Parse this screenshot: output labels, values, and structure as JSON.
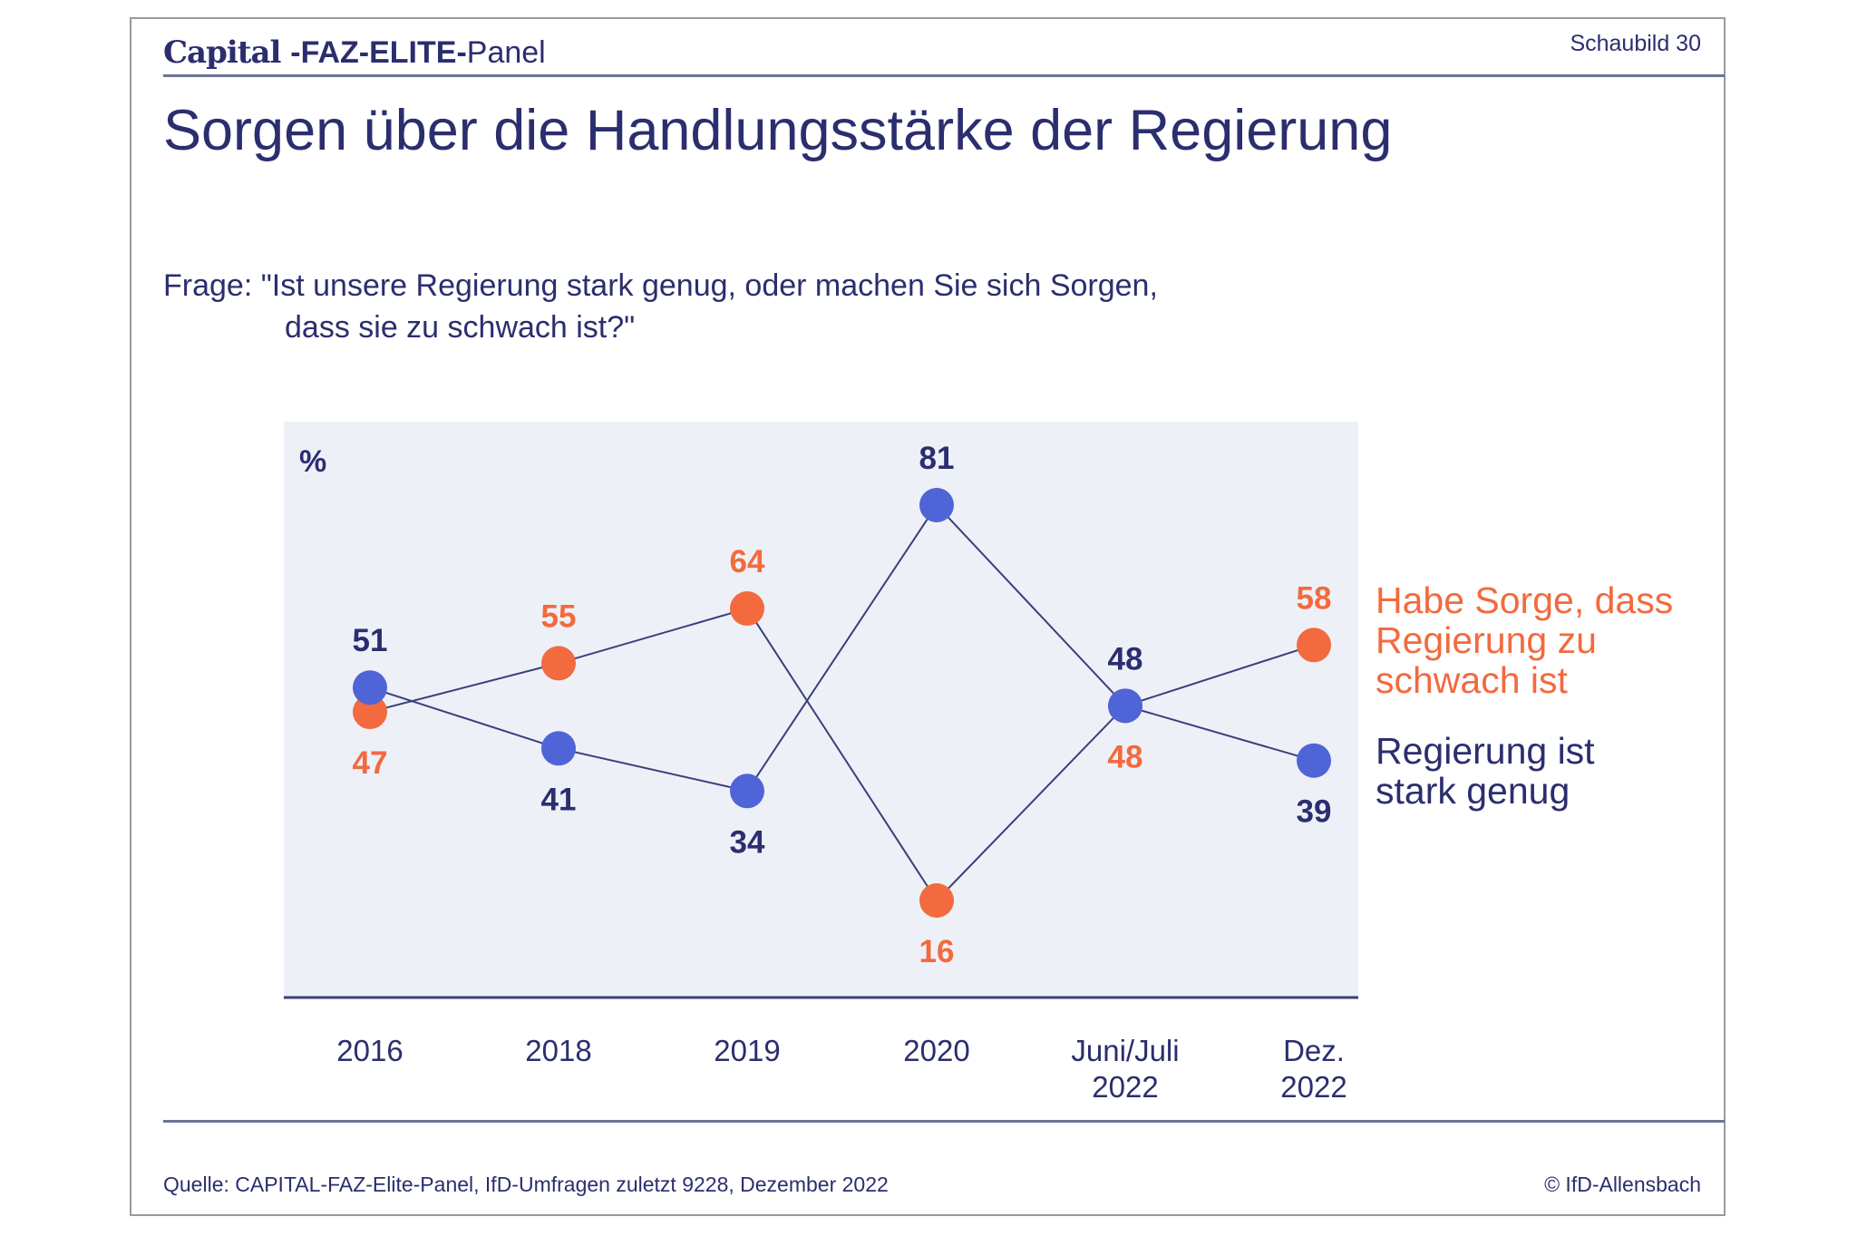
{
  "header": {
    "brand_capital": "Capital",
    "brand_faz": "-FAZ-ELITE-",
    "brand_panel": "Panel",
    "figure_number": "Schaubild 30"
  },
  "title": "Sorgen über die Handlungsstärke der Regierung",
  "question": {
    "line1": "Frage: \"Ist unsere Regierung stark genug, oder machen Sie sich Sorgen,",
    "line2": "dass sie zu schwach ist?\""
  },
  "chart_data": {
    "type": "line",
    "ylabel": "%",
    "ylim": [
      0,
      100
    ],
    "grid": false,
    "legend_position": "right",
    "categories": [
      "2016",
      "2018",
      "2019",
      "2020",
      "Juni/Juli\n2022",
      "Dez.\n2022"
    ],
    "series": [
      {
        "name": "Habe Sorge, dass Regierung zu schwach ist",
        "color": "#f26a3e",
        "values": [
          47,
          55,
          64,
          16,
          48,
          58
        ]
      },
      {
        "name": "Regierung ist stark genug",
        "color": "#4f64d6",
        "values": [
          51,
          41,
          34,
          81,
          48,
          39
        ]
      }
    ]
  },
  "legend": {
    "orange_lines": [
      "Habe Sorge, dass",
      "Regierung zu",
      "schwach ist"
    ],
    "navy_lines": [
      "Regierung ist",
      "stark genug"
    ]
  },
  "footer": {
    "source": "Quelle: CAPITAL-FAZ-Elite-Panel, IfD-Umfragen zuletzt 9228, Dezember 2022",
    "copyright": "© IfD-Allensbach"
  },
  "colors": {
    "navy": "#2b2e6e",
    "orange": "#f26a3e",
    "blue_dot": "#4f64d6",
    "plot_bg": "#eef0f7"
  }
}
